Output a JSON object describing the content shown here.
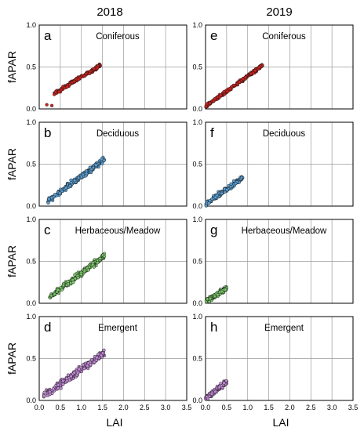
{
  "column_titles": [
    "2018",
    "2019"
  ],
  "x_axis_label": "LAI",
  "y_axis_label": "fAPAR",
  "chart_data": {
    "type": "scatter",
    "xlim": [
      0.0,
      3.5
    ],
    "ylim": [
      0.0,
      1.0
    ],
    "x_ticks": [
      "0.0",
      "0.5",
      "1.0",
      "1.5",
      "2.0",
      "2.5",
      "3.0",
      "3.5"
    ],
    "y_ticks": [
      "0.0",
      "0.5",
      "1.0"
    ],
    "grid": true,
    "panels": [
      {
        "letter": "a",
        "title": "Coniferous",
        "column": 0,
        "row": 0,
        "color": "#d0211d",
        "cluster": {
          "x_min": 0.35,
          "x_max": 1.45,
          "y_at_min": 0.18,
          "y_at_max": 0.52,
          "spread": 0.03,
          "n": 180
        },
        "outliers": [
          {
            "x": 0.18,
            "y": 0.05
          },
          {
            "x": 0.3,
            "y": 0.04
          }
        ]
      },
      {
        "letter": "b",
        "title": "Deciduous",
        "column": 0,
        "row": 1,
        "color": "#5aa0d6",
        "cluster": {
          "x_min": 0.2,
          "x_max": 1.55,
          "y_at_min": 0.06,
          "y_at_max": 0.56,
          "spread": 0.05,
          "n": 220
        },
        "outliers": []
      },
      {
        "letter": "c",
        "title": "Herbaceous/Meadow",
        "column": 0,
        "row": 2,
        "color": "#7cc96a",
        "cluster": {
          "x_min": 0.25,
          "x_max": 1.55,
          "y_at_min": 0.07,
          "y_at_max": 0.57,
          "spread": 0.05,
          "n": 220
        },
        "outliers": []
      },
      {
        "letter": "d",
        "title": "Emergent",
        "column": 0,
        "row": 3,
        "color": "#c48ad8",
        "cluster": {
          "x_min": 0.1,
          "x_max": 1.55,
          "y_at_min": 0.05,
          "y_at_max": 0.57,
          "spread": 0.06,
          "n": 240
        },
        "outliers": []
      },
      {
        "letter": "e",
        "title": "Coniferous",
        "column": 1,
        "row": 0,
        "color": "#d0211d",
        "cluster": {
          "x_min": 0.0,
          "x_max": 1.35,
          "y_at_min": 0.03,
          "y_at_max": 0.52,
          "spread": 0.03,
          "n": 220
        },
        "outliers": []
      },
      {
        "letter": "f",
        "title": "Deciduous",
        "column": 1,
        "row": 1,
        "color": "#5aa0d6",
        "cluster": {
          "x_min": 0.0,
          "x_max": 0.88,
          "y_at_min": 0.02,
          "y_at_max": 0.34,
          "spread": 0.04,
          "n": 200
        },
        "outliers": []
      },
      {
        "letter": "g",
        "title": "Herbaceous/Meadow",
        "column": 1,
        "row": 2,
        "color": "#7cc96a",
        "cluster": {
          "x_min": 0.0,
          "x_max": 0.5,
          "y_at_min": 0.02,
          "y_at_max": 0.18,
          "spread": 0.04,
          "n": 200
        },
        "outliers": []
      },
      {
        "letter": "h",
        "title": "Emergent",
        "column": 1,
        "row": 3,
        "color": "#c48ad8",
        "cluster": {
          "x_min": 0.0,
          "x_max": 0.5,
          "y_at_min": 0.02,
          "y_at_max": 0.22,
          "spread": 0.04,
          "n": 200
        },
        "outliers": []
      }
    ]
  }
}
